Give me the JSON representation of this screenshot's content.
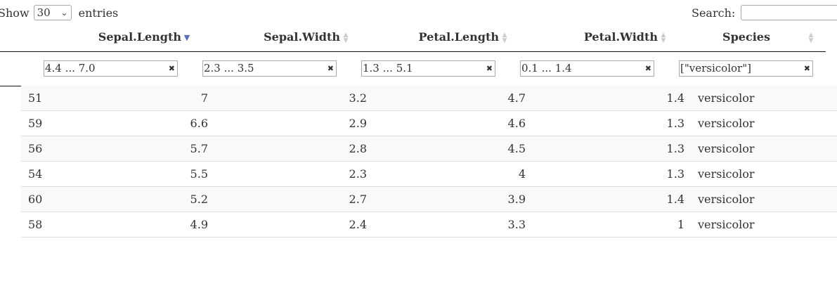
{
  "length_menu": {
    "prefix": "Show",
    "selected": "30",
    "suffix": "entries"
  },
  "search": {
    "label": "Search:",
    "value": ""
  },
  "columns": [
    {
      "label": "Sepal.Length",
      "sort": "desc"
    },
    {
      "label": "Sepal.Width",
      "sort": "none"
    },
    {
      "label": "Petal.Length",
      "sort": "none"
    },
    {
      "label": "Petal.Width",
      "sort": "none"
    },
    {
      "label": "Species",
      "sort": "none"
    }
  ],
  "filters": [
    "4.4 ... 7.0",
    "2.3 ... 3.5",
    "1.3 ... 5.1",
    "0.1 ... 1.4",
    "[\"versicolor\"]"
  ],
  "rows": [
    {
      "id": "51",
      "sepal_length": "7",
      "sepal_width": "3.2",
      "petal_length": "4.7",
      "petal_width": "1.4",
      "species": "versicolor"
    },
    {
      "id": "59",
      "sepal_length": "6.6",
      "sepal_width": "2.9",
      "petal_length": "4.6",
      "petal_width": "1.3",
      "species": "versicolor"
    },
    {
      "id": "56",
      "sepal_length": "5.7",
      "sepal_width": "2.8",
      "petal_length": "4.5",
      "petal_width": "1.3",
      "species": "versicolor"
    },
    {
      "id": "54",
      "sepal_length": "5.5",
      "sepal_width": "2.3",
      "petal_length": "4",
      "petal_width": "1.3",
      "species": "versicolor"
    },
    {
      "id": "60",
      "sepal_length": "5.2",
      "sepal_width": "2.7",
      "petal_length": "3.9",
      "petal_width": "1.4",
      "species": "versicolor"
    },
    {
      "id": "58",
      "sepal_length": "4.9",
      "sepal_width": "2.4",
      "petal_length": "3.3",
      "petal_width": "1",
      "species": "versicolor"
    }
  ]
}
